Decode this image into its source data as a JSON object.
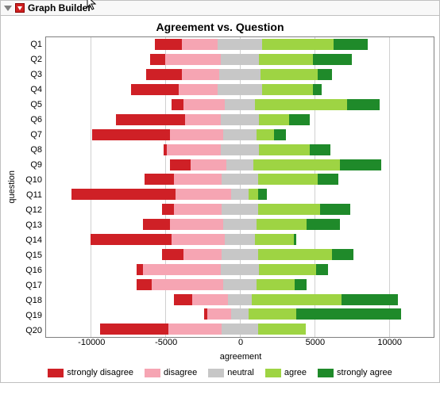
{
  "header": {
    "title": "Graph Builder"
  },
  "chart": {
    "type": "stacked-diverging-bar",
    "title": "Agreement vs. Question",
    "ylabel": "question",
    "xlabel": "agreement",
    "xlim": [
      -13000,
      13000
    ],
    "xticks": [
      -10000,
      -5000,
      0,
      5000,
      10000
    ],
    "xtick_labels": [
      "-10000",
      "-5000",
      "0",
      "5000",
      "10000"
    ],
    "background_color": "#ffffff",
    "grid_color": "#d0d0d0",
    "border_color": "#808080",
    "title_fontsize": 14,
    "label_fontsize": 11,
    "categories": [
      "Q1",
      "Q2",
      "Q3",
      "Q4",
      "Q5",
      "Q6",
      "Q7",
      "Q8",
      "Q9",
      "Q10",
      "Q11",
      "Q12",
      "Q13",
      "Q14",
      "Q15",
      "Q16",
      "Q17",
      "Q18",
      "Q19",
      "Q20"
    ],
    "series": {
      "strongly_disagree": {
        "label": "strongly disagree",
        "color": "#cf2026"
      },
      "disagree": {
        "label": "disagree",
        "color": "#f6a5b3"
      },
      "neutral": {
        "label": "neutral",
        "color": "#c7c7c7"
      },
      "agree": {
        "label": "agree",
        "color": "#9ed443"
      },
      "strongly_agree": {
        "label": "strongly agree",
        "color": "#1f8a2a"
      }
    },
    "rows": [
      {
        "sd": 1800,
        "d": 2400,
        "n": 3000,
        "a": 4800,
        "sa": 2300
      },
      {
        "sd": 1000,
        "d": 3700,
        "n": 2600,
        "a": 3600,
        "sa": 2600
      },
      {
        "sd": 2400,
        "d": 2500,
        "n": 2800,
        "a": 3800,
        "sa": 1000
      },
      {
        "sd": 3200,
        "d": 2600,
        "n": 3000,
        "a": 3400,
        "sa": 600
      },
      {
        "sd": 800,
        "d": 2800,
        "n": 2000,
        "a": 6200,
        "sa": 2200
      },
      {
        "sd": 4600,
        "d": 2400,
        "n": 2600,
        "a": 2000,
        "sa": 1400
      },
      {
        "sd": 5200,
        "d": 3600,
        "n": 2200,
        "a": 1200,
        "sa": 800
      },
      {
        "sd": 200,
        "d": 3600,
        "n": 2600,
        "a": 3400,
        "sa": 1400
      },
      {
        "sd": 1400,
        "d": 2400,
        "n": 1800,
        "a": 5800,
        "sa": 2800
      },
      {
        "sd": 2000,
        "d": 3200,
        "n": 2400,
        "a": 4000,
        "sa": 1400
      },
      {
        "sd": 7000,
        "d": 3700,
        "n": 1200,
        "a": 600,
        "sa": 600
      },
      {
        "sd": 800,
        "d": 3200,
        "n": 2400,
        "a": 4200,
        "sa": 2000
      },
      {
        "sd": 1800,
        "d": 3600,
        "n": 2200,
        "a": 3400,
        "sa": 2200
      },
      {
        "sd": 5400,
        "d": 3600,
        "n": 2000,
        "a": 2600,
        "sa": 200
      },
      {
        "sd": 1400,
        "d": 2600,
        "n": 2400,
        "a": 5000,
        "sa": 1400
      },
      {
        "sd": 400,
        "d": 5200,
        "n": 2600,
        "a": 3800,
        "sa": 800
      },
      {
        "sd": 1000,
        "d": 4800,
        "n": 2200,
        "a": 2600,
        "sa": 800
      },
      {
        "sd": 1200,
        "d": 2400,
        "n": 1600,
        "a": 6000,
        "sa": 3800
      },
      {
        "sd": 200,
        "d": 1600,
        "n": 1200,
        "a": 3200,
        "sa": 7000
      },
      {
        "sd": 4600,
        "d": 3600,
        "n": 2400,
        "a": 3200,
        "sa": 0
      }
    ]
  },
  "legend_order": [
    "strongly_disagree",
    "disagree",
    "neutral",
    "agree",
    "strongly_agree"
  ]
}
